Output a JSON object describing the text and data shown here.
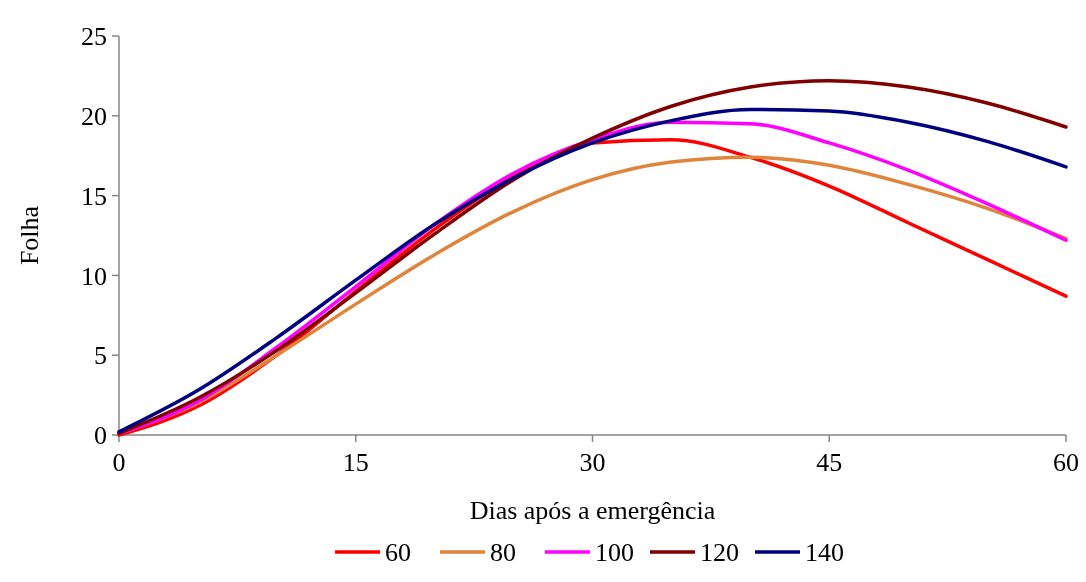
{
  "chart_data": {
    "type": "line",
    "xlabel": "Dias após a emergência",
    "ylabel": "Folha",
    "x": [
      0,
      5,
      10,
      15,
      20,
      25,
      30,
      35,
      40,
      45,
      50,
      55,
      60
    ],
    "xlim": [
      0,
      60
    ],
    "xticks": [
      0,
      15,
      30,
      45,
      60
    ],
    "ylim": [
      0,
      25
    ],
    "yticks": [
      0,
      5,
      10,
      15,
      20,
      25
    ],
    "grid": false,
    "legend": "bottom",
    "marker": "none",
    "line_style": "solid",
    "series": [
      {
        "name": "60",
        "color": "#ff0000",
        "values": [
          0,
          1.8,
          5.0,
          9.0,
          12.9,
          16.2,
          18.3,
          18.5,
          17.4,
          15.6,
          13.3,
          11.0,
          8.7
        ]
      },
      {
        "name": "80",
        "color": "#e0843c",
        "values": [
          0.1,
          2.0,
          5.0,
          8.2,
          11.3,
          14.0,
          16.0,
          17.1,
          17.4,
          16.9,
          15.7,
          14.2,
          12.3
        ]
      },
      {
        "name": "100",
        "color": "#ff00ff",
        "values": [
          0.1,
          2.1,
          5.5,
          9.3,
          13.2,
          16.4,
          18.5,
          19.6,
          19.5,
          18.3,
          16.6,
          14.5,
          12.2
        ]
      },
      {
        "name": "120",
        "color": "#800000",
        "values": [
          0.1,
          2.3,
          5.3,
          8.9,
          12.6,
          16.0,
          18.6,
          20.6,
          21.8,
          22.2,
          21.8,
          20.8,
          19.3
        ]
      },
      {
        "name": "140",
        "color": "#000080",
        "values": [
          0.2,
          2.8,
          6.1,
          9.7,
          13.2,
          16.1,
          18.3,
          19.7,
          20.4,
          20.3,
          19.6,
          18.4,
          16.8
        ]
      }
    ]
  }
}
